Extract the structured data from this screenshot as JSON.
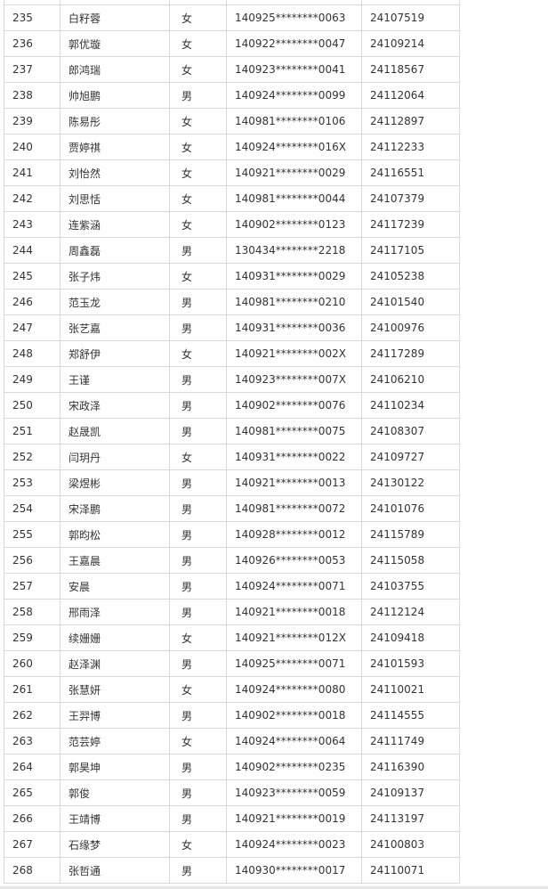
{
  "rows": [
    [
      "235",
      "白籽蓉",
      "女",
      "140925********0063",
      "24107519"
    ],
    [
      "236",
      "郭优璇",
      "女",
      "140922********0047",
      "24109214"
    ],
    [
      "237",
      "郎鸿瑞",
      "女",
      "140923********0041",
      "24118567"
    ],
    [
      "238",
      "帅旭鹏",
      "男",
      "140924********0099",
      "24112064"
    ],
    [
      "239",
      "陈易彤",
      "女",
      "140981********0106",
      "24112897"
    ],
    [
      "240",
      "贾婷祺",
      "女",
      "140924********016X",
      "24112233"
    ],
    [
      "241",
      "刘怡然",
      "女",
      "140921********0029",
      "24116551"
    ],
    [
      "242",
      "刘思恬",
      "女",
      "140981********0044",
      "24107379"
    ],
    [
      "243",
      "连紫涵",
      "女",
      "140902********0123",
      "24117239"
    ],
    [
      "244",
      "周鑫磊",
      "男",
      "130434********2218",
      "24117105"
    ],
    [
      "245",
      "张子炜",
      "女",
      "140931********0029",
      "24105238"
    ],
    [
      "246",
      "范玉龙",
      "男",
      "140981********0210",
      "24101540"
    ],
    [
      "247",
      "张艺嘉",
      "男",
      "140931********0036",
      "24100976"
    ],
    [
      "248",
      "郑舒伊",
      "女",
      "140921********002X",
      "24117289"
    ],
    [
      "249",
      "王谨",
      "男",
      "140923********007X",
      "24106210"
    ],
    [
      "250",
      "宋政泽",
      "男",
      "140902********0076",
      "24110234"
    ],
    [
      "251",
      "赵晟凯",
      "男",
      "140981********0075",
      "24108307"
    ],
    [
      "252",
      "闫玥丹",
      "女",
      "140931********0022",
      "24109727"
    ],
    [
      "253",
      "梁煜彬",
      "男",
      "140921********0013",
      "24130122"
    ],
    [
      "254",
      "宋泽鹏",
      "男",
      "140981********0072",
      "24101076"
    ],
    [
      "255",
      "郭昀松",
      "男",
      "140928********0012",
      "24115789"
    ],
    [
      "256",
      "王嘉晨",
      "男",
      "140926********0053",
      "24115058"
    ],
    [
      "257",
      "安晨",
      "男",
      "140924********0071",
      "24103755"
    ],
    [
      "258",
      "邢雨泽",
      "男",
      "140921********0018",
      "24112124"
    ],
    [
      "259",
      "续姗姗",
      "女",
      "140921********012X",
      "24109418"
    ],
    [
      "260",
      "赵泽渊",
      "男",
      "140925********0071",
      "24101593"
    ],
    [
      "261",
      "张慧妍",
      "女",
      "140924********0080",
      "24110021"
    ],
    [
      "262",
      "王羿博",
      "男",
      "140902********0018",
      "24114555"
    ],
    [
      "263",
      "范芸婷",
      "女",
      "140924********0064",
      "24111749"
    ],
    [
      "264",
      "郭昊坤",
      "男",
      "140902********0235",
      "24116390"
    ],
    [
      "265",
      "郭俊",
      "男",
      "140923********0059",
      "24109137"
    ],
    [
      "266",
      "王靖博",
      "男",
      "140921********0019",
      "24113197"
    ],
    [
      "267",
      "石缘梦",
      "女",
      "140924********0023",
      "24100803"
    ],
    [
      "268",
      "张哲通",
      "男",
      "140930********0017",
      "24110071"
    ]
  ]
}
